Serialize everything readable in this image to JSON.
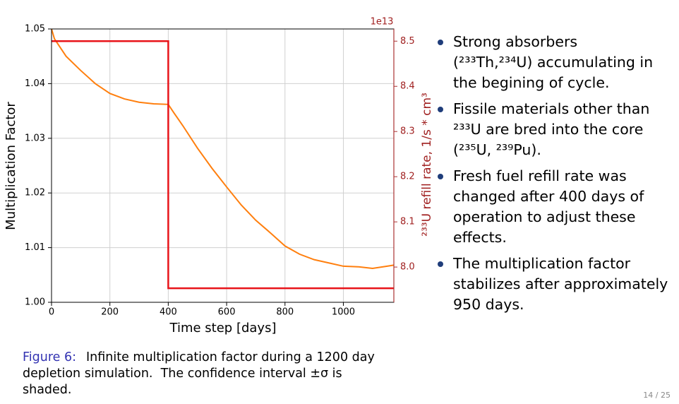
{
  "chart_data": {
    "type": "line",
    "xlabel": "Time step [days]",
    "ylabel": "Multiplication Factor",
    "y2label": "²³³U refill rate, 1/s * cm³",
    "y2offset": "1e13",
    "xlim": [
      0,
      1173
    ],
    "xticks": [
      0,
      200,
      400,
      600,
      800,
      1000
    ],
    "ylim": [
      1.0,
      1.05
    ],
    "yticks": [
      {
        "value": 1.0,
        "label": "1.00"
      },
      1.01,
      1.02,
      1.03,
      1.04,
      1.05
    ],
    "y2lim": [
      7.922,
      8.527
    ],
    "y2ticks": [
      {
        "value": 8,
        "label": "8.0"
      },
      8.1,
      8.2,
      8.3,
      8.4,
      8.5
    ],
    "grid": true,
    "series": [
      {
        "color": "#ff7f0e",
        "x": [
          0,
          10,
          50,
          100,
          150,
          200,
          250,
          300,
          350,
          400,
          420,
          450,
          500,
          550,
          600,
          650,
          700,
          750,
          800,
          850,
          900,
          950,
          1000,
          1050,
          1100,
          1150,
          1173
        ],
        "values": [
          1.05,
          1.0482,
          1.045,
          1.0424,
          1.04,
          1.0382,
          1.0372,
          1.0366,
          1.0363,
          1.0362,
          1.0346,
          1.0323,
          1.0282,
          1.0245,
          1.0211,
          1.0178,
          1.015,
          1.0127,
          1.0103,
          1.0088,
          1.0078,
          1.0072,
          1.0066,
          1.0065,
          1.0062,
          1.0066,
          1.0068
        ]
      },
      {
        "color": "#e8141a",
        "axis": "y2",
        "x": [
          0,
          400,
          400,
          1173
        ],
        "values": [
          8.5,
          8.5,
          7.953,
          7.953
        ]
      }
    ]
  },
  "caption": {
    "label": "Figure 6:",
    "lines": [
      "Infinite multiplication factor during a 1200 day",
      "depletion simulation.  The confidence interval ±σ is",
      "shaded."
    ]
  },
  "bullets": [
    [
      "Strong absorbers",
      "(²³³Th,²³⁴U) accumulating in",
      "the begining of cycle."
    ],
    [
      "Fissile materials other than",
      "²³³U are bred into the core",
      "(²³⁵U, ²³⁹Pu)."
    ],
    [
      "Fresh fuel refill rate was",
      "changed after 400 days of",
      "operation to adjust these",
      "effects."
    ],
    [
      "The multiplication factor",
      "stabilizes after approximately",
      "950 days."
    ]
  ],
  "page_number": "14 / 25"
}
